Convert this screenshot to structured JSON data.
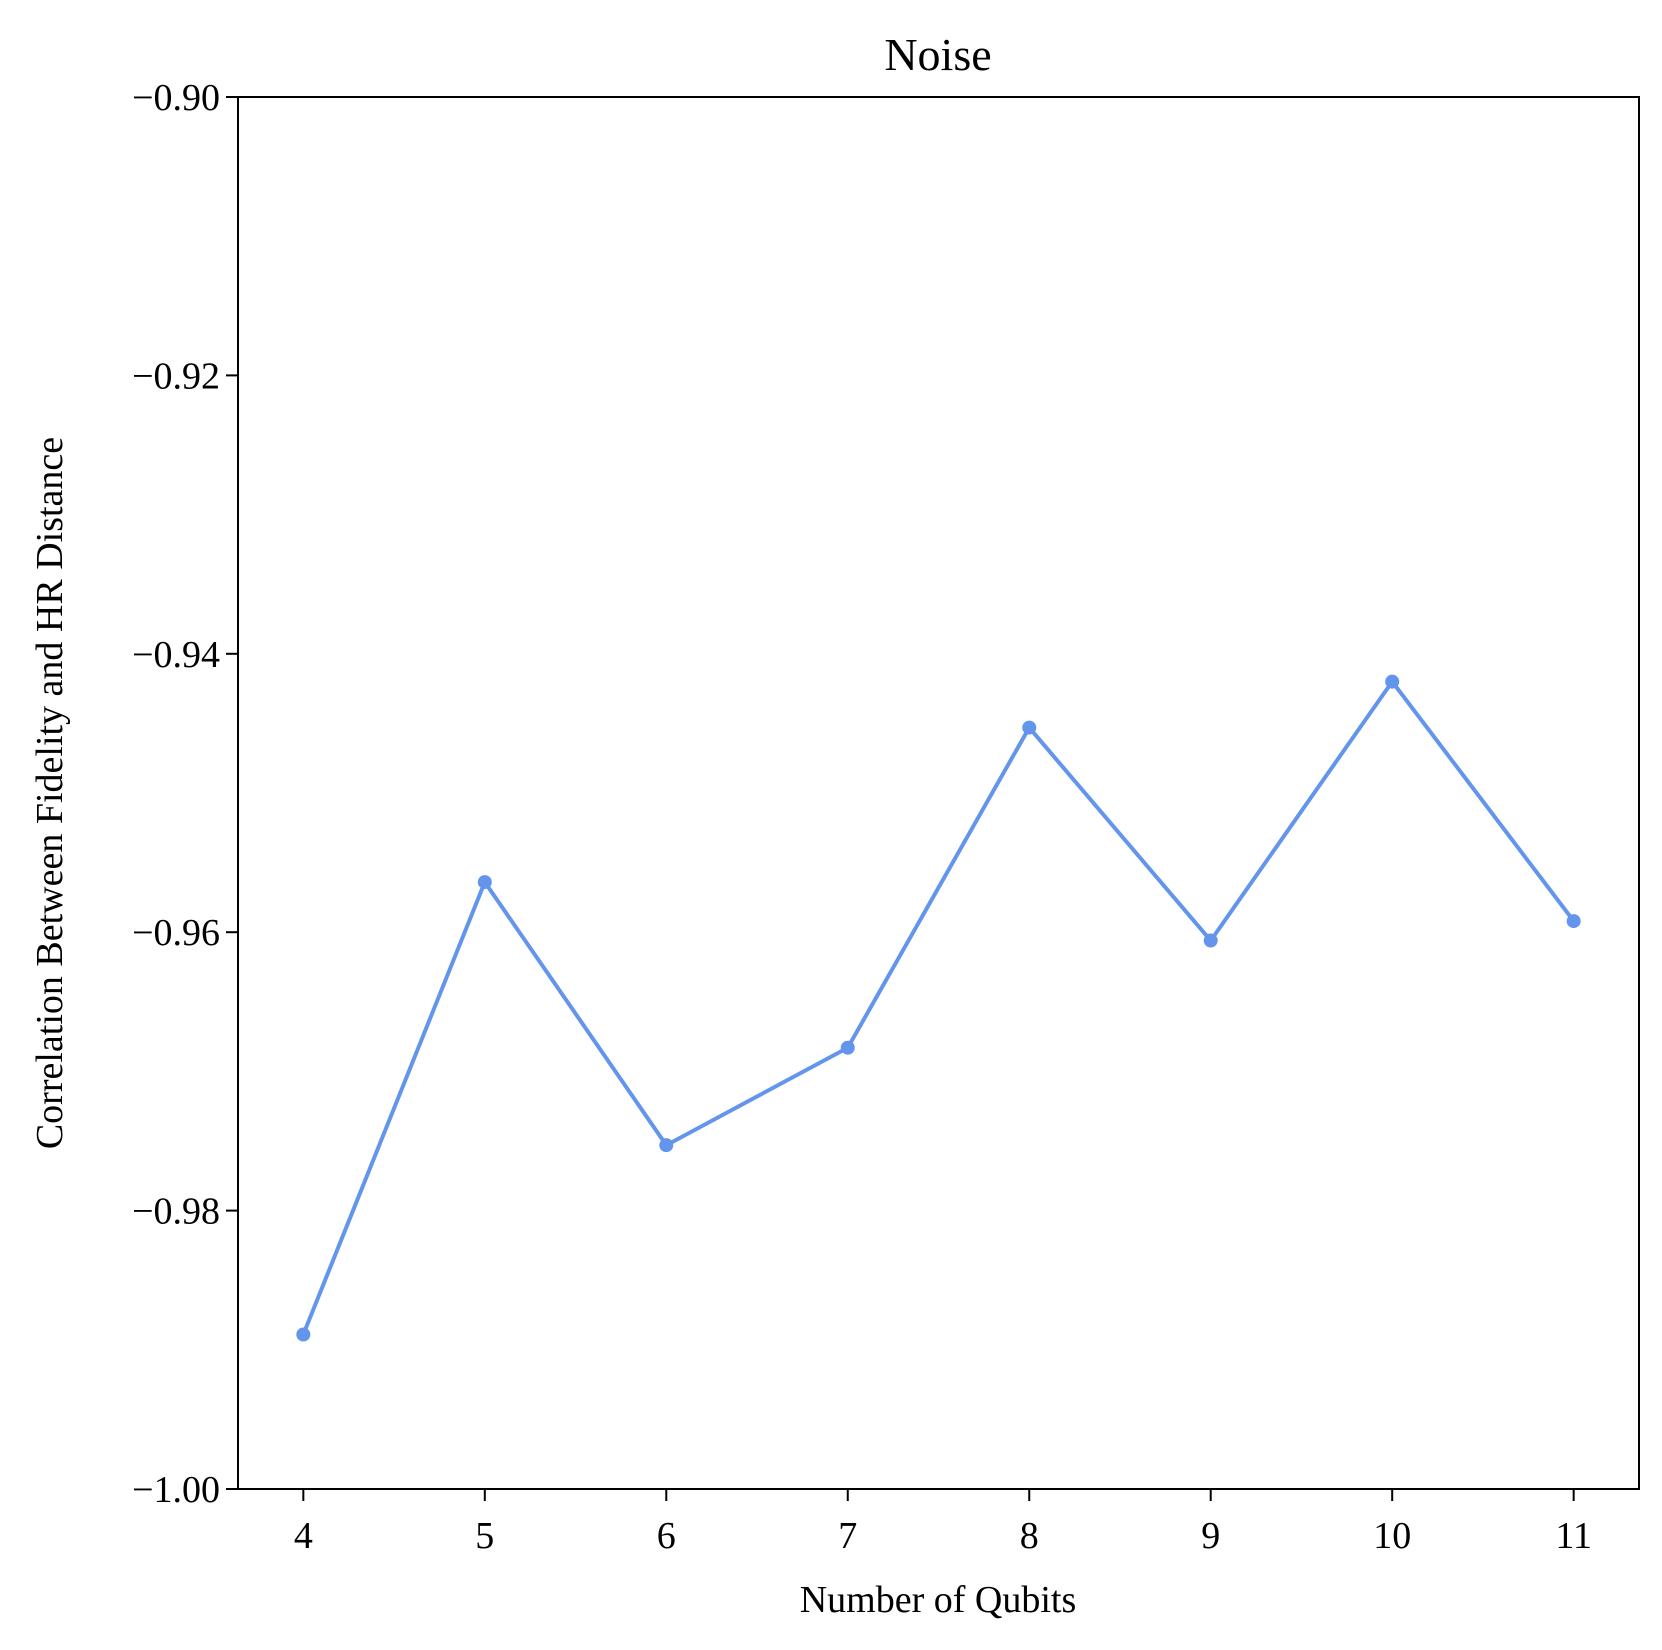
{
  "chart_data": {
    "type": "line",
    "title": "Noise",
    "xlabel": "Number of Qubits",
    "ylabel": "Correlation Between Fidelity and HR Distance",
    "x": [
      4,
      5,
      6,
      7,
      8,
      9,
      10,
      11
    ],
    "xticks": [
      "4",
      "5",
      "6",
      "7",
      "8",
      "9",
      "10",
      "11"
    ],
    "xlim": [
      3.64,
      11.36
    ],
    "ylim": [
      -1.0,
      -0.9
    ],
    "yticks": [
      -1.0,
      -0.98,
      -0.96,
      -0.94,
      -0.92,
      -0.9
    ],
    "ytick_labels": [
      "−1.00",
      "−0.98",
      "−0.96",
      "−0.94",
      "−0.92",
      "−0.90"
    ],
    "grid": false,
    "series": [
      {
        "values": [
          -0.9889,
          -0.9564,
          -0.9753,
          -0.9683,
          -0.9453,
          -0.9606,
          -0.942,
          -0.9592
        ],
        "color": "#6495ED",
        "marker": "circle"
      }
    ]
  }
}
